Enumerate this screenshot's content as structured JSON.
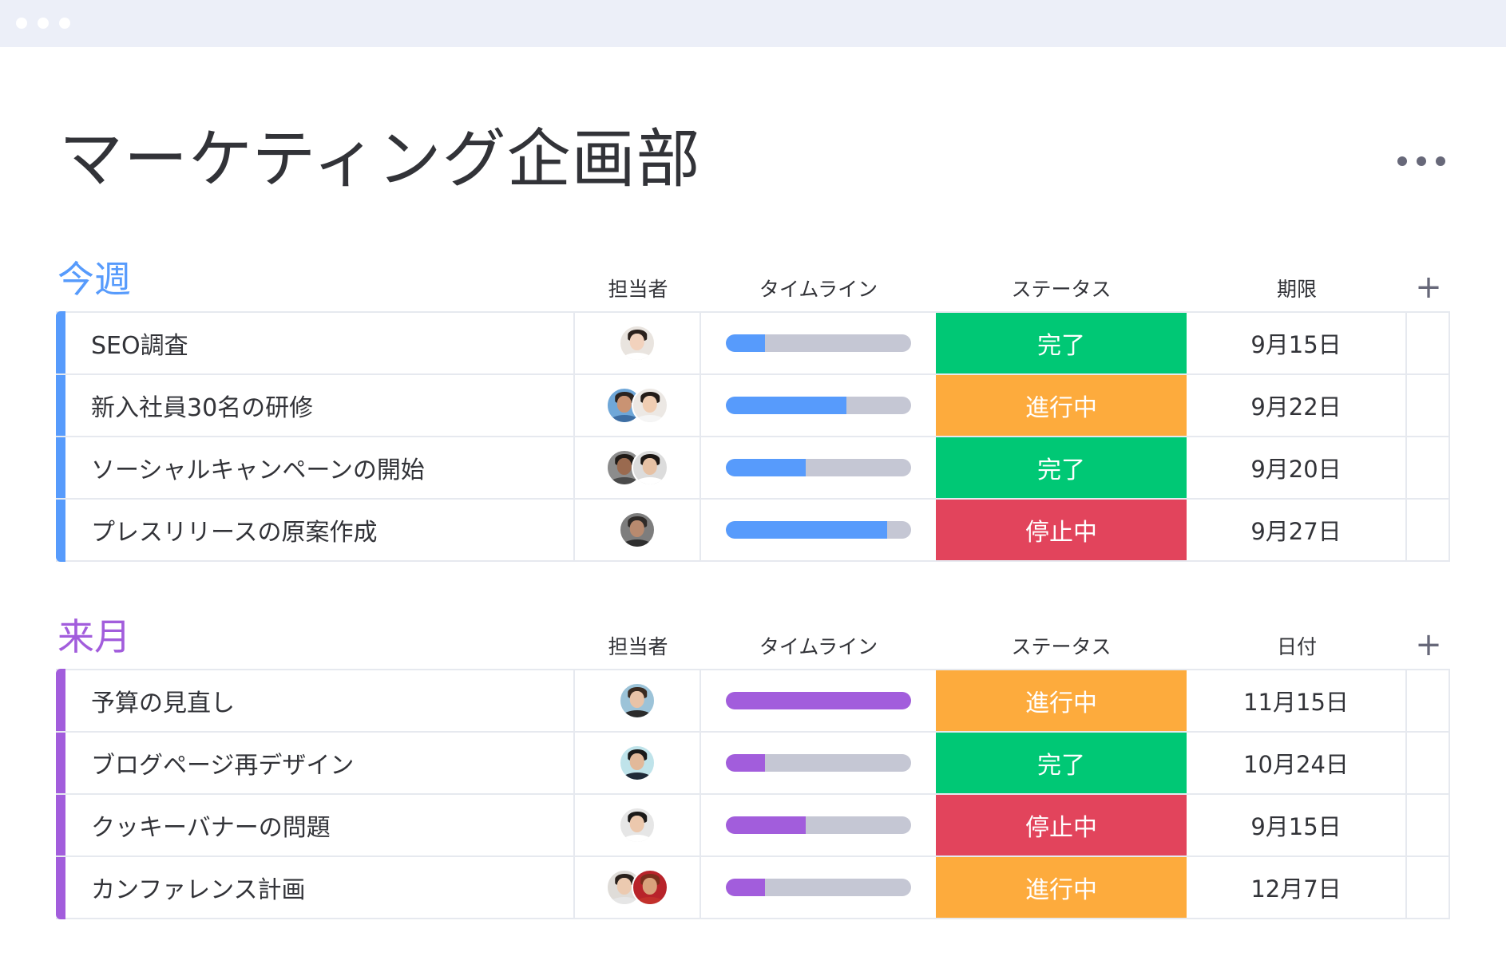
{
  "window": {
    "dots": [
      "dot",
      "dot",
      "dot"
    ]
  },
  "board": {
    "title": "マーケティング企画部",
    "more_icon": "more-horizontal-icon"
  },
  "colors": {
    "done": "#00c875",
    "working": "#fdab3d",
    "stuck": "#e2445c",
    "group1": "#579bfc",
    "group2": "#a25ddc",
    "track": "#c5c7d4"
  },
  "groups": [
    {
      "title": "今週",
      "color": "#579bfc",
      "columns": {
        "person": "担当者",
        "timeline": "タイムライン",
        "status": "ステータス",
        "date": "期限",
        "add": "+"
      },
      "rows": [
        {
          "name": "SEO調査",
          "people": [
            {
              "skin": "#f2d2bd",
              "hair": "#2b211c",
              "body": "#ffffff",
              "bg": "#e9e4df"
            }
          ],
          "progress": 0.21,
          "status": "完了",
          "status_color": "#00c875",
          "date": "9月15日"
        },
        {
          "name": "新入社員30名の研修",
          "people": [
            {
              "skin": "#c99373",
              "hair": "#2a2320",
              "body": "#3e6ea3",
              "bg": "#6fa7d8"
            },
            {
              "skin": "#f0cdb2",
              "hair": "#231c18",
              "body": "#f5f5f5",
              "bg": "#ece8e4"
            }
          ],
          "progress": 0.65,
          "status": "進行中",
          "status_color": "#fdab3d",
          "date": "9月22日"
        },
        {
          "name": "ソーシャルキャンペーンの開始",
          "people": [
            {
              "skin": "#9a6a4f",
              "hair": "#1f1a17",
              "body": "#4a4a4a",
              "bg": "#8c8c8c"
            },
            {
              "skin": "#e6c1a4",
              "hair": "#1c1714",
              "body": "#ffffff",
              "bg": "#dcdcdc"
            }
          ],
          "progress": 0.43,
          "status": "完了",
          "status_color": "#00c875",
          "date": "9月20日"
        },
        {
          "name": "プレスリリースの原案作成",
          "people": [
            {
              "skin": "#b88a6f",
              "hair": "#2e2a28",
              "body": "#2f2f2f",
              "bg": "#7d7d7d"
            }
          ],
          "progress": 0.87,
          "status": "停止中",
          "status_color": "#e2445c",
          "date": "9月27日"
        }
      ]
    },
    {
      "title": "来月",
      "color": "#a25ddc",
      "columns": {
        "person": "担当者",
        "timeline": "タイムライン",
        "status": "ステータス",
        "date": "日付",
        "add": "+"
      },
      "rows": [
        {
          "name": "予算の見直し",
          "people": [
            {
              "skin": "#e9c3a7",
              "hair": "#3a2a20",
              "body": "#2b2b2b",
              "bg": "#9cc3d8"
            }
          ],
          "progress": 1.0,
          "status": "進行中",
          "status_color": "#fdab3d",
          "date": "11月15日"
        },
        {
          "name": "ブログページ再デザイン",
          "people": [
            {
              "skin": "#e2b99a",
              "hair": "#1a1a1a",
              "body": "#1f2a38",
              "bg": "#bfe3ea"
            }
          ],
          "progress": 0.21,
          "status": "完了",
          "status_color": "#00c875",
          "date": "10月24日"
        },
        {
          "name": "クッキーバナーの問題",
          "people": [
            {
              "skin": "#ecc8ad",
              "hair": "#1b1a19",
              "body": "#ffffff",
              "bg": "#e6e6e6"
            }
          ],
          "progress": 0.43,
          "status": "停止中",
          "status_color": "#e2445c",
          "date": "9月15日"
        },
        {
          "name": "カンファレンス計画",
          "people": [
            {
              "skin": "#eccab0",
              "hair": "#2a211c",
              "body": "#e6e6e6",
              "bg": "#dfdcd8"
            },
            {
              "skin": "#d9a27c",
              "hair": "#7a2e1c",
              "body": "#c2302b",
              "bg": "#b8232a"
            }
          ],
          "progress": 0.21,
          "status": "進行中",
          "status_color": "#fdab3d",
          "date": "12月7日"
        }
      ]
    }
  ]
}
